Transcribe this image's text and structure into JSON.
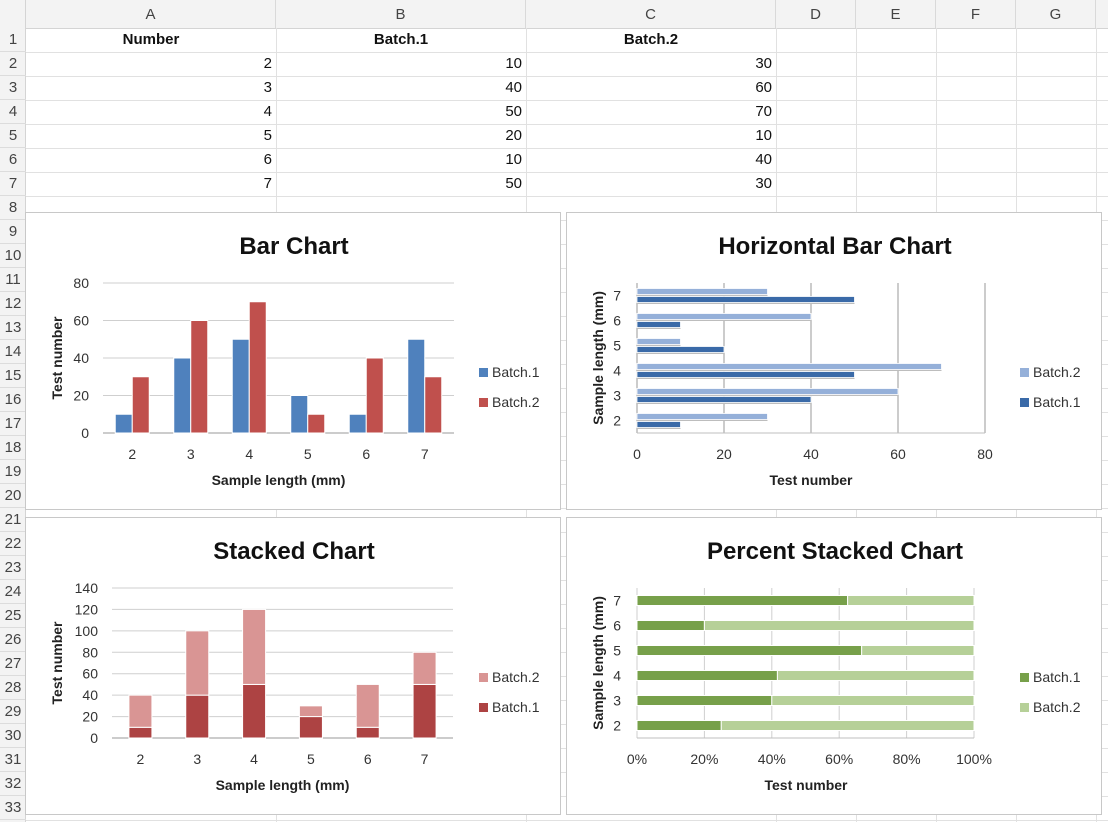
{
  "columns": [
    "A",
    "B",
    "C",
    "D",
    "E",
    "F",
    "G"
  ],
  "rows": [
    "1",
    "2",
    "3",
    "4",
    "5",
    "6",
    "7",
    "8",
    "9",
    "10",
    "11",
    "12",
    "13",
    "14",
    "15",
    "16",
    "17",
    "18",
    "19",
    "20",
    "21",
    "22",
    "23",
    "24",
    "25",
    "26",
    "27",
    "28",
    "29",
    "30",
    "31",
    "32",
    "33"
  ],
  "table": {
    "headers": [
      "Number",
      "Batch.1",
      "Batch.2"
    ],
    "rows": [
      [
        "2",
        "10",
        "30"
      ],
      [
        "3",
        "40",
        "60"
      ],
      [
        "4",
        "50",
        "70"
      ],
      [
        "5",
        "20",
        "10"
      ],
      [
        "6",
        "10",
        "40"
      ],
      [
        "7",
        "50",
        "30"
      ]
    ]
  },
  "colors": {
    "bar_b1": "#4f81bd",
    "bar_b2": "#c0504d",
    "hbar_b1": "#3a6aa8",
    "hbar_b2": "#95b0d9",
    "stack_b1": "#ad4343",
    "stack_b2": "#d99594",
    "pct_b1": "#77a04a",
    "pct_b2": "#b6d098"
  },
  "chart_data": [
    {
      "id": "bar",
      "type": "bar",
      "title": "Bar Chart",
      "xlabel": "Sample length (mm)",
      "ylabel": "Test number",
      "categories": [
        "2",
        "3",
        "4",
        "5",
        "6",
        "7"
      ],
      "series": [
        {
          "name": "Batch.1",
          "values": [
            10,
            40,
            50,
            20,
            10,
            50
          ]
        },
        {
          "name": "Batch.2",
          "values": [
            30,
            60,
            70,
            10,
            40,
            30
          ]
        }
      ],
      "ylim": [
        0,
        80
      ],
      "ticks": [
        "0",
        "20",
        "40",
        "60",
        "80"
      ],
      "grid": true,
      "legend": "right",
      "legend_items": [
        "Batch.1",
        "Batch.2"
      ]
    },
    {
      "id": "hbar",
      "type": "bar",
      "orientation": "horizontal",
      "title": "Horizontal Bar Chart",
      "xlabel": "Test number",
      "ylabel": "Sample length (mm)",
      "categories": [
        "2",
        "3",
        "4",
        "5",
        "6",
        "7"
      ],
      "series": [
        {
          "name": "Batch.1",
          "values": [
            10,
            40,
            50,
            20,
            10,
            50
          ]
        },
        {
          "name": "Batch.2",
          "values": [
            30,
            60,
            70,
            10,
            40,
            30
          ]
        }
      ],
      "xlim": [
        0,
        80
      ],
      "ticks": [
        "0",
        "20",
        "40",
        "60",
        "80"
      ],
      "grid": true,
      "legend": "right",
      "legend_items": [
        "Batch.2",
        "Batch.1"
      ]
    },
    {
      "id": "stack",
      "type": "bar",
      "stacked": true,
      "title": "Stacked Chart",
      "xlabel": "Sample length (mm)",
      "ylabel": "Test number",
      "categories": [
        "2",
        "3",
        "4",
        "5",
        "6",
        "7"
      ],
      "series": [
        {
          "name": "Batch.1",
          "values": [
            10,
            40,
            50,
            20,
            10,
            50
          ]
        },
        {
          "name": "Batch.2",
          "values": [
            30,
            60,
            70,
            10,
            40,
            30
          ]
        }
      ],
      "ylim": [
        0,
        140
      ],
      "ticks": [
        "0",
        "20",
        "40",
        "60",
        "80",
        "100",
        "120",
        "140"
      ],
      "grid": true,
      "legend": "right",
      "legend_items": [
        "Batch.2",
        "Batch.1"
      ]
    },
    {
      "id": "pct",
      "type": "bar",
      "orientation": "horizontal",
      "stacked": "percent",
      "title": "Percent Stacked Chart",
      "xlabel": "Test number",
      "ylabel": "Sample length (mm)",
      "categories": [
        "2",
        "3",
        "4",
        "5",
        "6",
        "7"
      ],
      "series": [
        {
          "name": "Batch.1",
          "values": [
            10,
            40,
            50,
            20,
            10,
            50
          ]
        },
        {
          "name": "Batch.2",
          "values": [
            30,
            60,
            70,
            10,
            40,
            30
          ]
        }
      ],
      "xlim": [
        0,
        100
      ],
      "ticks": [
        "0%",
        "20%",
        "40%",
        "60%",
        "80%",
        "100%"
      ],
      "grid": true,
      "legend": "right",
      "legend_items": [
        "Batch.1",
        "Batch.2"
      ]
    }
  ]
}
